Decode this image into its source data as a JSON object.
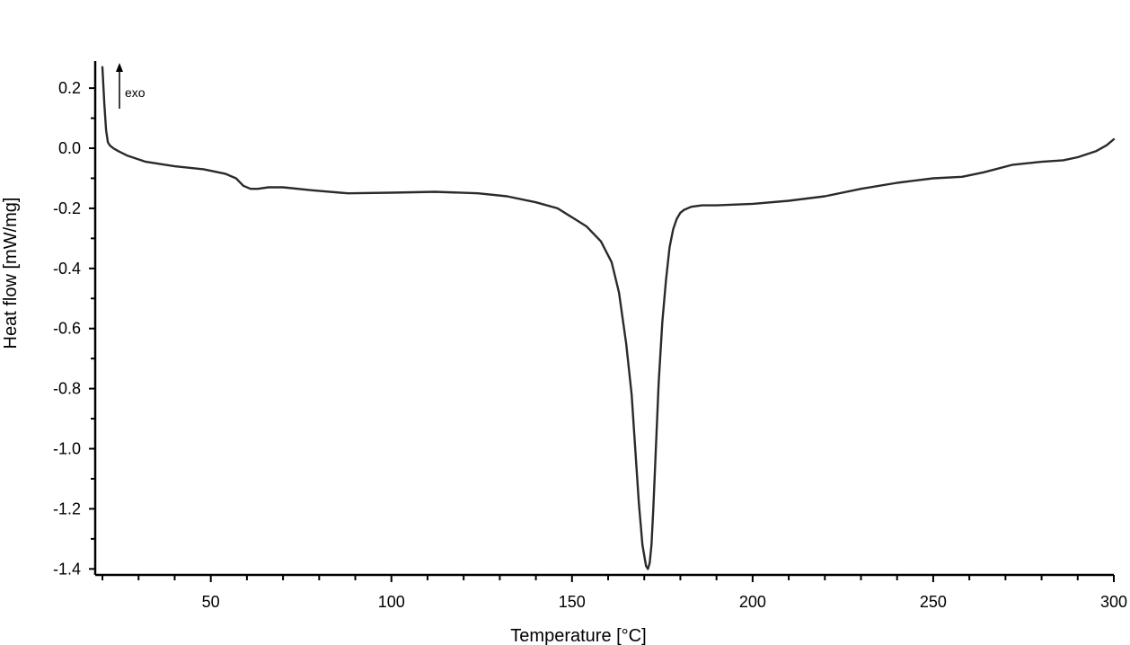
{
  "chart_data": {
    "type": "line",
    "title": "",
    "xlabel": "Temperature [°C]",
    "ylabel": "Heat flow [mW/mg]",
    "xlim": [
      18,
      300
    ],
    "ylim": [
      -1.42,
      0.29
    ],
    "x_major_ticks": [
      50,
      100,
      150,
      200,
      250,
      300
    ],
    "x_minor_step": 10,
    "y_major_ticks": [
      0.2,
      0.0,
      -0.2,
      -0.4,
      -0.6,
      -0.8,
      -1.0,
      -1.2,
      -1.4
    ],
    "y_tick_labels": [
      "0.2",
      "0.0",
      "-0.2",
      "-0.4",
      "-0.6",
      "-0.8",
      "-1.0",
      "-1.2",
      "-1.4"
    ],
    "y_minor_step": 0.1,
    "grid": false,
    "annotation": {
      "text": "exo",
      "direction": "up"
    },
    "line_color": "#2a2a2a",
    "series": [
      {
        "name": "",
        "x": [
          20.0,
          20.5,
          21.0,
          21.5,
          22.0,
          23.0,
          24.5,
          27.0,
          32.0,
          40.0,
          48.0,
          54.0,
          57.0,
          59.0,
          61.0,
          63.0,
          66.0,
          70.0,
          78.0,
          88.0,
          100.0,
          112.0,
          124.0,
          132.0,
          140.0,
          146.0,
          150.0,
          154.0,
          158.0,
          161.0,
          163.0,
          165.0,
          166.5,
          167.5,
          168.5,
          169.5,
          170.5,
          171.0,
          171.5,
          172.0,
          172.5,
          173.0,
          173.5,
          174.0,
          175.0,
          176.0,
          177.0,
          178.0,
          179.0,
          180.0,
          181.0,
          183.0,
          186.0,
          190.0,
          200.0,
          210.0,
          220.0,
          230.0,
          240.0,
          250.0,
          258.0,
          264.0,
          272.0,
          280.0,
          286.0,
          290.0,
          295.0,
          298.0,
          300.0
        ],
        "y": [
          0.27,
          0.15,
          0.06,
          0.02,
          0.01,
          0.0,
          -0.01,
          -0.025,
          -0.045,
          -0.06,
          -0.07,
          -0.085,
          -0.1,
          -0.125,
          -0.135,
          -0.135,
          -0.13,
          -0.13,
          -0.14,
          -0.15,
          -0.148,
          -0.145,
          -0.15,
          -0.16,
          -0.18,
          -0.2,
          -0.23,
          -0.26,
          -0.31,
          -0.38,
          -0.48,
          -0.65,
          -0.82,
          -1.0,
          -1.18,
          -1.32,
          -1.39,
          -1.4,
          -1.38,
          -1.32,
          -1.2,
          -1.06,
          -0.92,
          -0.78,
          -0.58,
          -0.44,
          -0.33,
          -0.27,
          -0.235,
          -0.215,
          -0.205,
          -0.195,
          -0.19,
          -0.19,
          -0.185,
          -0.175,
          -0.16,
          -0.135,
          -0.115,
          -0.1,
          -0.095,
          -0.08,
          -0.055,
          -0.045,
          -0.04,
          -0.03,
          -0.01,
          0.01,
          0.03
        ]
      }
    ]
  }
}
